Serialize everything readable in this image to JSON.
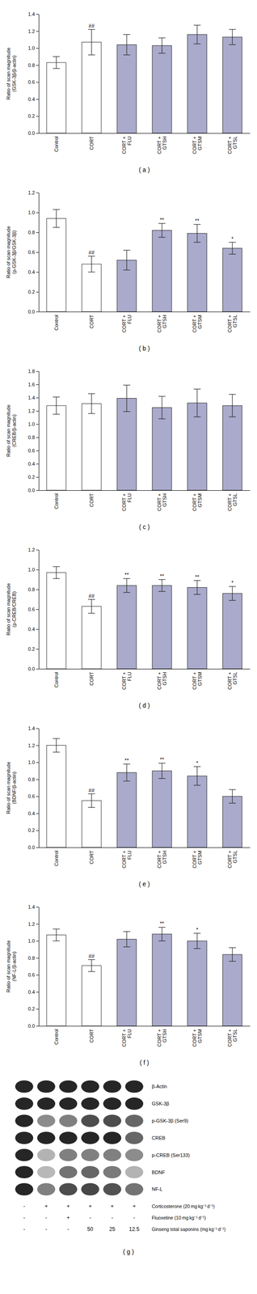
{
  "chart_data": [
    {
      "type": "bar",
      "title": "( a )",
      "ylabel": "Ratio of scan magnitude\n(GSK-3β/β-actin)",
      "categories": [
        "Control",
        "CORT",
        "CORT +\nFLU",
        "CORT +\nGTSH",
        "CORT +\nGTSM",
        "CORT +\nGTSL"
      ],
      "values": [
        0.83,
        1.07,
        1.04,
        1.03,
        1.16,
        1.13
      ],
      "errors": [
        0.07,
        0.15,
        0.12,
        0.09,
        0.11,
        0.09
      ],
      "annotations": [
        null,
        "##",
        null,
        null,
        null,
        null
      ],
      "colors": [
        "white",
        "white",
        "#aaaacc",
        "#aaaacc",
        "#aaaacc",
        "#aaaacc"
      ],
      "ylim": [
        0,
        1.4
      ],
      "yticks": [
        {
          "value": 0,
          "label": "0.0"
        },
        0.2,
        0.4,
        0.6,
        0.8,
        {
          "value": 1.0,
          "label": "1.0"
        },
        1.2,
        1.4
      ],
      "grid": false
    },
    {
      "type": "bar",
      "title": "( b )",
      "ylabel": "Ratio of scan magnitude\n(p-GSK-3β/GSK-3β)",
      "categories": [
        "Control",
        "CORT",
        "CORT +\nFLU",
        "CORT +\nGTSH",
        "CORT +\nGTSM",
        "CORT +\nGTSL"
      ],
      "values": [
        0.94,
        0.48,
        0.52,
        0.82,
        0.79,
        0.64
      ],
      "errors": [
        0.09,
        0.08,
        0.1,
        0.07,
        0.09,
        0.06
      ],
      "annotations": [
        null,
        "##",
        null,
        "**",
        "**",
        "*"
      ],
      "colors": [
        "white",
        "white",
        "#aaaacc",
        "#aaaacc",
        "#aaaacc",
        "#aaaacc"
      ],
      "ylim": [
        0,
        1.2
      ],
      "yticks": [
        {
          "value": 0,
          "label": "0.0"
        },
        0.2,
        0.4,
        0.6,
        0.8,
        {
          "value": 1.0,
          "label": "1.0"
        },
        1.2
      ],
      "grid": false
    },
    {
      "type": "bar",
      "title": "( c )",
      "ylabel": "Ratio of scan magnitude\n(CREB/β-actin)",
      "categories": [
        "Control",
        "CORT",
        "CORT +\nFLU",
        "CORT +\nGTSH",
        "CORT +\nGTSM",
        "CORT +\nGTSL"
      ],
      "values": [
        1.28,
        1.31,
        1.39,
        1.25,
        1.32,
        1.28
      ],
      "errors": [
        0.13,
        0.15,
        0.2,
        0.17,
        0.21,
        0.17
      ],
      "annotations": [
        null,
        null,
        null,
        null,
        null,
        null
      ],
      "colors": [
        "white",
        "white",
        "#aaaacc",
        "#aaaacc",
        "#aaaacc",
        "#aaaacc"
      ],
      "ylim": [
        0,
        1.8
      ],
      "yticks": [
        {
          "value": 0,
          "label": "0.0"
        },
        0.2,
        0.4,
        0.6,
        0.8,
        {
          "value": 1.0,
          "label": "1.0"
        },
        1.2,
        1.4,
        1.6,
        1.8
      ],
      "grid": false
    },
    {
      "type": "bar",
      "title": "( d )",
      "ylabel": "Ratio of scan magnitude\n(p-CREB/CREB)",
      "categories": [
        "Control",
        "CORT",
        "CORT +\nFLU",
        "CORT +\nGTSH",
        "CORT +\nGTSM",
        "CORT +\nGTSL"
      ],
      "values": [
        0.97,
        0.63,
        0.84,
        0.84,
        0.82,
        0.76
      ],
      "errors": [
        0.06,
        0.07,
        0.07,
        0.06,
        0.07,
        0.07
      ],
      "annotations": [
        null,
        "##",
        "**",
        "**",
        "**",
        "*"
      ],
      "colors": [
        "white",
        "white",
        "#aaaacc",
        "#aaaacc",
        "#aaaacc",
        "#aaaacc"
      ],
      "ylim": [
        0,
        1.2
      ],
      "yticks": [
        {
          "value": 0,
          "label": "0.0"
        },
        0.2,
        0.4,
        0.6,
        0.8,
        {
          "value": 1.0,
          "label": "1.0"
        },
        1.2
      ],
      "grid": false
    },
    {
      "type": "bar",
      "title": "( e )",
      "ylabel": "Ratio of scan magnitude\n(BDNF/β-actin)",
      "categories": [
        "Control",
        "CORT",
        "CORT +\nFLU",
        "CORT +\nGTSH",
        "CORT +\nGTSM",
        "CORT +\nGTSL"
      ],
      "values": [
        1.2,
        0.55,
        0.88,
        0.9,
        0.84,
        0.6
      ],
      "errors": [
        0.08,
        0.08,
        0.1,
        0.09,
        0.11,
        0.08
      ],
      "annotations": [
        null,
        "##",
        "**",
        "**",
        "*",
        null
      ],
      "colors": [
        "white",
        "white",
        "#aaaacc",
        "#aaaacc",
        "#aaaacc",
        "#aaaacc"
      ],
      "ylim": [
        0,
        1.4
      ],
      "yticks": [
        {
          "value": 0,
          "label": "0.0"
        },
        0.2,
        0.4,
        0.6,
        0.8,
        {
          "value": 1.0,
          "label": "1.0"
        },
        1.2,
        1.4
      ],
      "grid": false
    },
    {
      "type": "bar",
      "title": "( f )",
      "ylabel": "Ratio of scan magnitude\n(NF-L/β-actin)",
      "categories": [
        "Control",
        "CORT",
        "CORT +\nFLU",
        "CORT +\nGTSH",
        "CORT +\nGTSM",
        "CORT +\nGTSL"
      ],
      "values": [
        1.07,
        0.71,
        1.02,
        1.08,
        1.0,
        0.84
      ],
      "errors": [
        0.07,
        0.07,
        0.09,
        0.08,
        0.09,
        0.08
      ],
      "annotations": [
        null,
        "##",
        null,
        "**",
        "*",
        null
      ],
      "colors": [
        "white",
        "white",
        "#aaaacc",
        "#aaaacc",
        "#aaaacc",
        "#aaaacc"
      ],
      "ylim": [
        0,
        1.4
      ],
      "yticks": [
        {
          "value": 0,
          "label": "0.0"
        },
        0.2,
        0.4,
        0.6,
        0.8,
        {
          "value": 1.0,
          "label": "1.0"
        },
        1.2,
        1.4
      ],
      "grid": false
    },
    {
      "type": "blot",
      "title": "( g )",
      "rows": [
        "β-Actin",
        "GSK-3β",
        "p-GSK-3β (Ser9)",
        "CREB",
        "p-CREB (Ser133)",
        "BDNF",
        "NF-L"
      ],
      "cells": [
        [
          0.15,
          0.15,
          0.15,
          0.15,
          0.15,
          0.15
        ],
        [
          0.15,
          0.15,
          0.15,
          0.15,
          0.15,
          0.15
        ],
        [
          0.15,
          0.55,
          0.5,
          0.3,
          0.3,
          0.4
        ],
        [
          0.15,
          0.15,
          0.15,
          0.15,
          0.15,
          0.4
        ],
        [
          0.15,
          0.7,
          0.5,
          0.5,
          0.5,
          0.55
        ],
        [
          0.15,
          0.72,
          0.45,
          0.4,
          0.48,
          0.7
        ],
        [
          0.15,
          0.5,
          0.3,
          0.28,
          0.32,
          0.45
        ]
      ],
      "lanes": [
        [
          "-",
          "+",
          "+",
          "+",
          "+",
          "+"
        ],
        [
          "-",
          "-",
          "+",
          "-",
          "-",
          "-"
        ],
        [
          "-",
          "-",
          "-",
          "50",
          "25",
          "12.5"
        ]
      ],
      "lane_labels": [
        "Corticosterone (20 mg kg⁻¹ d⁻¹)",
        "Fluoxetine (10 mg kg⁻¹ d⁻¹)",
        "Ginseng total saponins (mg kg⁻¹ d⁻¹)"
      ]
    }
  ]
}
